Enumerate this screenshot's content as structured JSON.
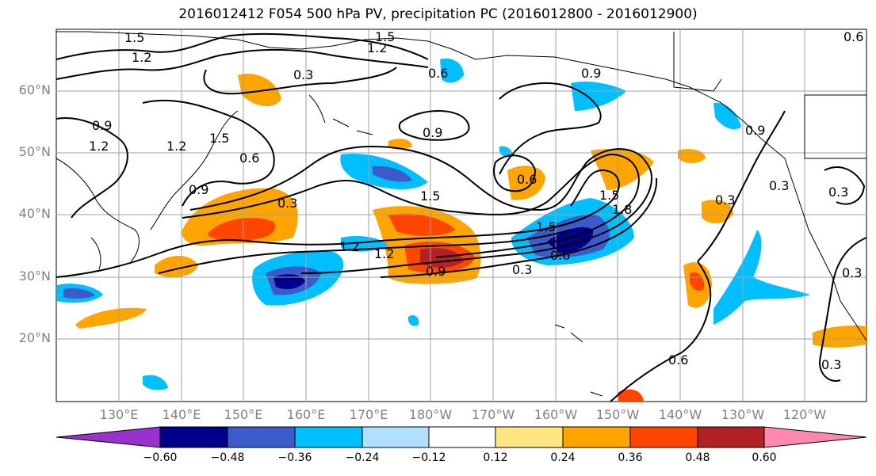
{
  "title": "2016012412 F054 500 hPa PV, precipitation PC (2016012800 - 2016012900)",
  "lat_labels": [
    "60°N",
    "50°N",
    "40°N",
    "30°N",
    "20°N"
  ],
  "lon_labels": [
    "130°E",
    "140°E",
    "150°E",
    "160°E",
    "170°E",
    "180°W",
    "170°W",
    "160°W",
    "150°W",
    "140°W",
    "130°W",
    "120°W"
  ],
  "contour_labels": [
    "1.5",
    "1.2",
    "1.5",
    "1.2",
    "0.3",
    "0.6",
    "0.9",
    "0.9",
    "1.2",
    "1.5",
    "0.6",
    "0.9",
    "0.3",
    "0.9",
    "1.2",
    "1.5",
    "0.6",
    "0.3",
    "1.2",
    "1.2",
    "1.5",
    "0.9",
    "1.5",
    "1.8",
    "0.6",
    "0.3",
    "0.3",
    "0.6",
    "0.3",
    "0.6",
    "0.9",
    "0.3",
    "0.3"
  ],
  "colorbar": {
    "ticks": [
      "−0.60",
      "−0.48",
      "−0.36",
      "−0.24",
      "−0.12",
      "0.12",
      "0.24",
      "0.36",
      "0.48",
      "0.60"
    ],
    "colors": [
      "#9932cc",
      "#00008b",
      "#3a5bc8",
      "#00bfff",
      "#b0e0ff",
      "#ffffff",
      "#ffe680",
      "#ffa500",
      "#ff4500",
      "#b22222",
      "#ff88b0"
    ]
  },
  "colors": {
    "land_outline": "#000000",
    "contour": "#000000",
    "grid": "#a0a0a0",
    "tick_label": "#808080"
  }
}
